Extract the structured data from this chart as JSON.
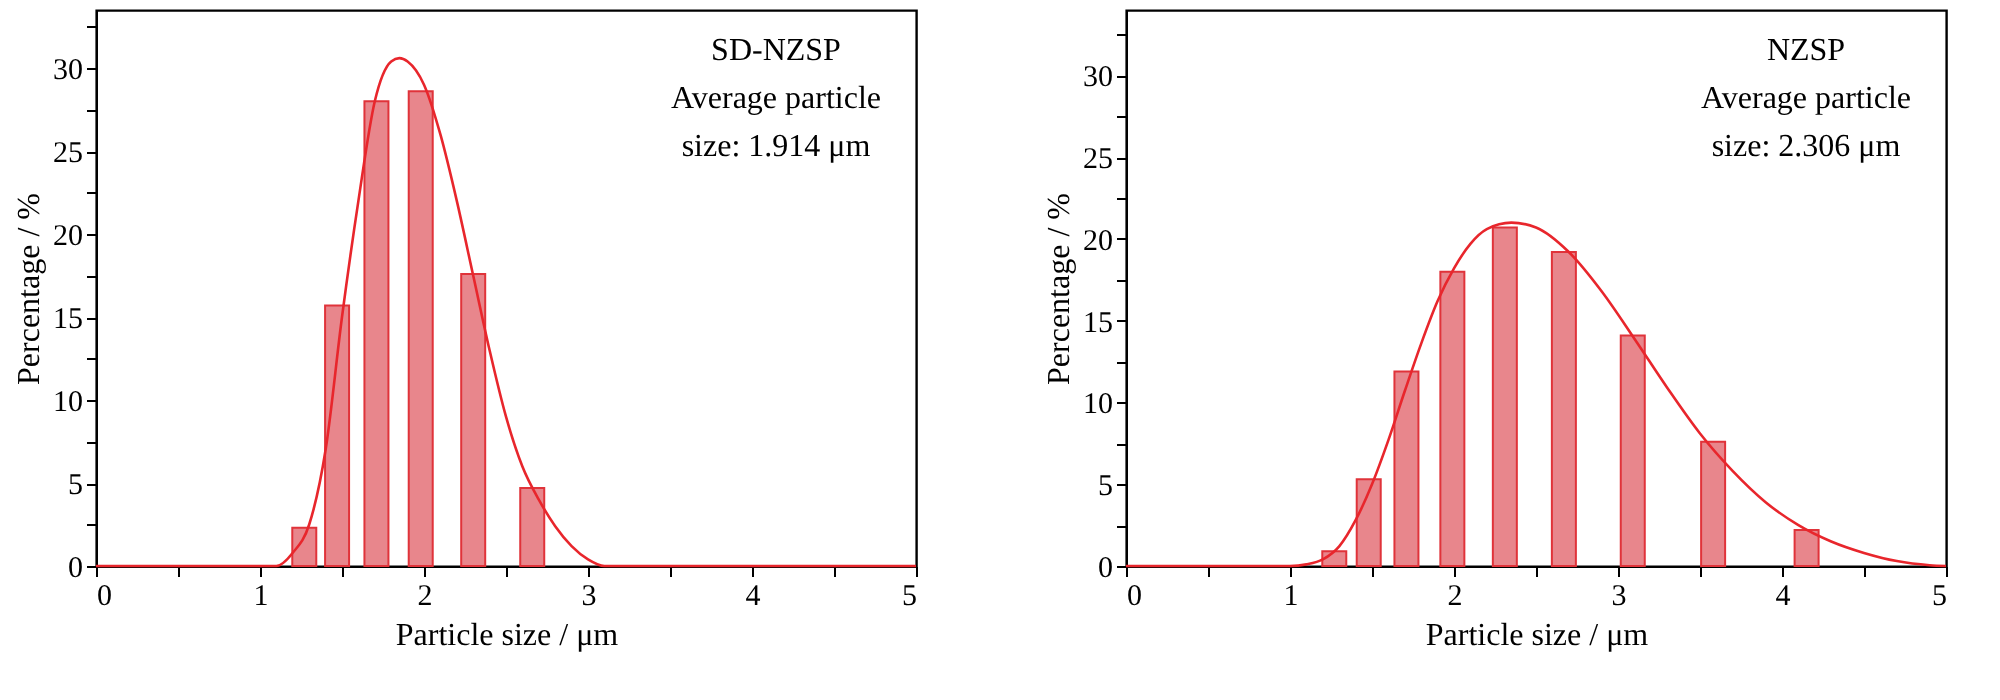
{
  "chart_data": [
    {
      "type": "bar",
      "xlabel": "Particle size / μm",
      "ylabel": "Percentage / %",
      "annotations": [
        "SD-NZSP",
        "Average particle",
        "size: 1.914 μm"
      ],
      "x": [
        1.27,
        1.47,
        1.71,
        1.98,
        2.3,
        2.66
      ],
      "series": [
        {
          "type": "bar",
          "color": "#e8868c",
          "values": [
            2.3,
            15.7,
            28.0,
            28.6,
            17.6,
            4.7
          ]
        },
        {
          "type": "line",
          "color": "#e8262c",
          "x": [
            0,
            1.0,
            1.1,
            1.2,
            1.3,
            1.4,
            1.5,
            1.6,
            1.7,
            1.8,
            1.85,
            1.9,
            2.0,
            2.1,
            2.2,
            2.3,
            2.4,
            2.5,
            2.6,
            2.7,
            2.8,
            2.9,
            3.0,
            3.1,
            5
          ],
          "values": [
            0,
            0,
            0,
            0.8,
            2.5,
            7,
            15,
            22,
            28,
            30.4,
            30.6,
            30.4,
            29,
            26,
            22,
            17.5,
            13,
            9,
            6,
            4,
            2.4,
            1.2,
            0.4,
            0,
            0
          ]
        }
      ],
      "xlim": [
        0,
        5
      ],
      "xticks": [
        0,
        {
          "value": 0.5,
          "label": null
        },
        1,
        {
          "value": 1.5,
          "label": null
        },
        2,
        {
          "value": 2.5,
          "label": null
        },
        3,
        {
          "value": 3.5,
          "label": null
        },
        4,
        {
          "value": 4.5,
          "label": null
        },
        5
      ],
      "ylim": [
        0,
        33.5
      ],
      "yticks": [
        0,
        {
          "value": 2.5,
          "label": null
        },
        5,
        {
          "value": 7.5,
          "label": null
        },
        10,
        {
          "value": 12.5,
          "label": null
        },
        15,
        {
          "value": 17.5,
          "label": null
        },
        20,
        {
          "value": 22.5,
          "label": null
        },
        25,
        {
          "value": 27.5,
          "label": null
        },
        30,
        {
          "value": 32.5,
          "label": null
        }
      ]
    },
    {
      "type": "bar",
      "xlabel": "Particle size / μm",
      "ylabel": "Percentage / %",
      "annotations": [
        "NZSP",
        "Average particle",
        "size: 2.306 μm"
      ],
      "x": [
        1.27,
        1.48,
        1.71,
        1.99,
        2.31,
        2.67,
        3.09,
        3.58,
        4.15
      ],
      "series": [
        {
          "type": "bar",
          "color": "#e8868c",
          "values": [
            0.9,
            5.3,
            11.9,
            18.0,
            20.7,
            19.2,
            14.1,
            7.6,
            2.2
          ]
        },
        {
          "type": "line",
          "color": "#e8262c",
          "x": [
            0,
            1.0,
            1.1,
            1.2,
            1.3,
            1.4,
            1.5,
            1.6,
            1.7,
            1.8,
            1.9,
            2.0,
            2.1,
            2.2,
            2.35,
            2.5,
            2.7,
            2.9,
            3.1,
            3.3,
            3.5,
            3.7,
            3.9,
            4.1,
            4.3,
            4.5,
            4.7,
            4.9,
            5
          ],
          "values": [
            0,
            0,
            0.1,
            0.4,
            1.2,
            2.8,
            5,
            7.7,
            10.7,
            13.6,
            16.2,
            18.2,
            19.7,
            20.6,
            21,
            20.7,
            19.2,
            16.8,
            13.9,
            10.9,
            8.1,
            5.8,
            3.9,
            2.5,
            1.5,
            0.8,
            0.3,
            0.05,
            0
          ]
        }
      ],
      "xlim": [
        0,
        5
      ],
      "xticks": [
        0,
        {
          "value": 0.5,
          "label": null
        },
        1,
        {
          "value": 1.5,
          "label": null
        },
        2,
        {
          "value": 2.5,
          "label": null
        },
        3,
        {
          "value": 3.5,
          "label": null
        },
        4,
        {
          "value": 4.5,
          "label": null
        },
        5
      ],
      "ylim": [
        0,
        34
      ],
      "yticks": [
        0,
        {
          "value": 2.5,
          "label": null
        },
        5,
        {
          "value": 7.5,
          "label": null
        },
        10,
        {
          "value": 12.5,
          "label": null
        },
        15,
        {
          "value": 17.5,
          "label": null
        },
        20,
        {
          "value": 22.5,
          "label": null
        },
        25,
        {
          "value": 27.5,
          "label": null
        },
        30,
        {
          "value": 32.5,
          "label": null
        }
      ]
    }
  ]
}
